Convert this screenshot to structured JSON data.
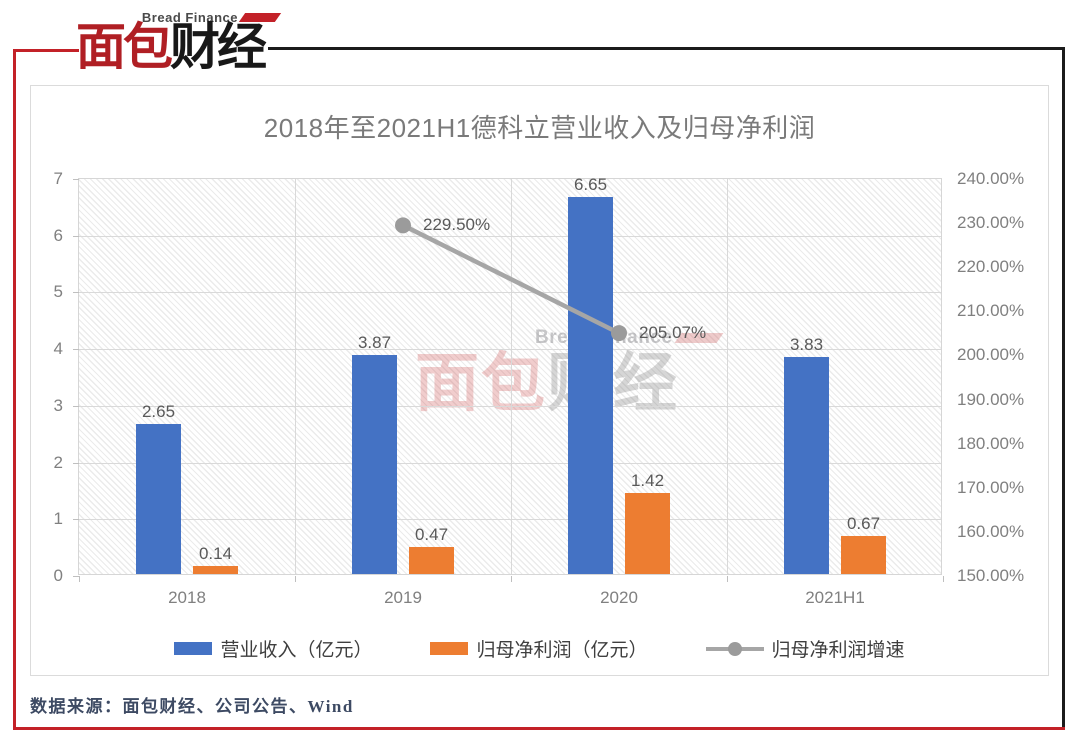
{
  "logo": {
    "brand_cn_red": "面包",
    "brand_cn_black": "财经",
    "brand_en": "Bread Finance"
  },
  "chart": {
    "title": "2018年至2021H1德科立营业收入及归母净利润",
    "watermark": {
      "en": "Bread Finance",
      "cn_red": "面包",
      "cn_gray": "财经"
    }
  },
  "chart_data": {
    "type": "bar",
    "subtype": "grouped-bars-with-line-combo",
    "title": "2018年至2021H1德科立营业收入及归母净利润",
    "categories": [
      "2018",
      "2019",
      "2020",
      "2021H1"
    ],
    "series": [
      {
        "name": "营业收入（亿元）",
        "type": "bar",
        "axis": "left",
        "color": "#4472C4",
        "values": [
          2.65,
          3.87,
          6.65,
          3.83
        ],
        "labels": [
          "2.65",
          "3.87",
          "6.65",
          "3.83"
        ]
      },
      {
        "name": "归母净利润（亿元）",
        "type": "bar",
        "axis": "left",
        "color": "#ED7D31",
        "values": [
          0.14,
          0.47,
          1.42,
          0.67
        ],
        "labels": [
          "0.14",
          "0.47",
          "1.42",
          "0.67"
        ]
      },
      {
        "name": "归母净利润增速",
        "type": "line",
        "axis": "right",
        "color": "#A6A6A6",
        "marker_color": "#9b9b9b",
        "values": [
          null,
          229.5,
          205.07,
          null
        ],
        "labels": [
          null,
          "229.50%",
          "205.07%",
          null
        ]
      }
    ],
    "left_axis": {
      "min": 0,
      "max": 7,
      "ticks": [
        "7",
        "6",
        "5",
        "4",
        "3",
        "2",
        "1",
        "0"
      ]
    },
    "right_axis": {
      "min": 150,
      "max": 240,
      "ticks": [
        "240.00%",
        "230.00%",
        "220.00%",
        "210.00%",
        "200.00%",
        "190.00%",
        "180.00%",
        "170.00%",
        "160.00%",
        "150.00%"
      ]
    },
    "grid": true,
    "legend_position": "bottom",
    "plot_background": "diagonal-hatch"
  },
  "source_note": "数据来源：面包财经、公司公告、Wind",
  "colors": {
    "brand_red": "#B01F24",
    "frame_red": "#C32128",
    "frame_black": "#1b1b1b",
    "bar_blue": "#4472C4",
    "bar_orange": "#ED7D31",
    "line_gray": "#A6A6A6",
    "title_gray": "#7a7a7a",
    "axis_gray": "#808080",
    "data_label_gray": "#595959",
    "grid_gray": "#D9D9D9",
    "source_text": "#3d4a63"
  }
}
